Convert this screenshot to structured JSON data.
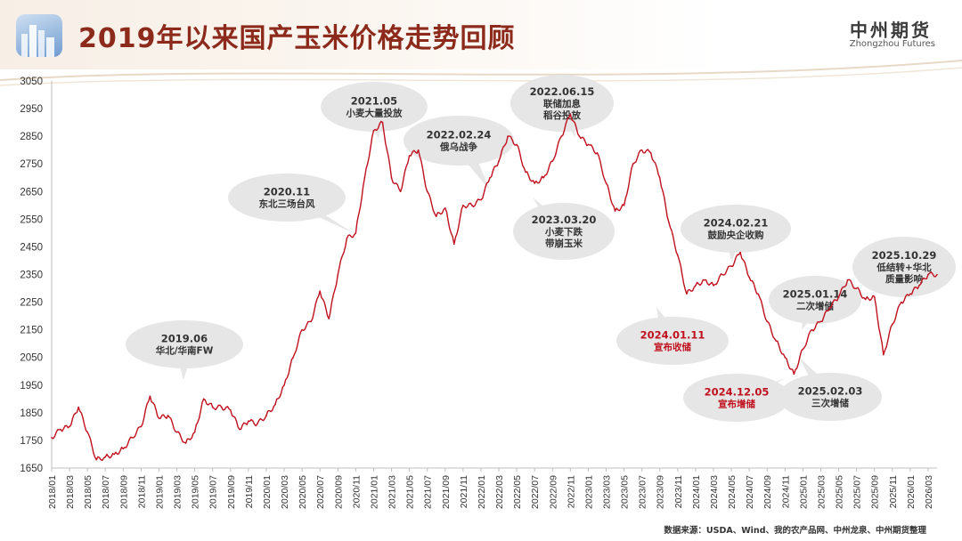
{
  "header": {
    "title": "2019年以来国产玉米价格走势回顾",
    "brand_cn": "中州期货",
    "brand_en": "Zhongzhou Futures"
  },
  "source_note": "数据来源：USDA、Wind、我的农产品网、中州龙泉、中州期货整理",
  "colors": {
    "line": "#c0101e",
    "bubble": "#e6e6e6",
    "highlight_text": "#c0101e",
    "title": "#8c2a1c"
  },
  "chart_data": {
    "type": "line",
    "title": "",
    "xlabel": "",
    "ylabel": "",
    "ylim": [
      1650,
      3050
    ],
    "yticks": [
      1650,
      1750,
      1850,
      1950,
      2050,
      2150,
      2250,
      2350,
      2450,
      2550,
      2650,
      2750,
      2850,
      2950,
      3050
    ],
    "xlim": [
      "2018-01",
      "2026-04"
    ],
    "xticks": [
      "2018/01",
      "2018/03",
      "2018/05",
      "2018/07",
      "2018/09",
      "2018/11",
      "2019/01",
      "2019/03",
      "2019/05",
      "2019/07",
      "2019/09",
      "2019/11",
      "2020/01",
      "2020/03",
      "2020/05",
      "2020/07",
      "2020/09",
      "2020/11",
      "2021/01",
      "2021/03",
      "2021/05",
      "2021/07",
      "2021/09",
      "2021/11",
      "2022/01",
      "2022/03",
      "2022/05",
      "2022/07",
      "2022/09",
      "2022/11",
      "2023/01",
      "2023/03",
      "2023/05",
      "2023/07",
      "2023/09",
      "2023/11",
      "2024/01",
      "2024/03",
      "2024/05",
      "2024/07",
      "2024/09",
      "2024/11",
      "2025/01",
      "2025/03",
      "2025/05",
      "2025/07",
      "2025/09",
      "2025/11",
      "2026/01",
      "2026/03"
    ],
    "grid": false,
    "series": [
      {
        "x": [
          "2018-01",
          "2018-02",
          "2018-03",
          "2018-04",
          "2018-05",
          "2018-06",
          "2018-07",
          "2018-08",
          "2018-09",
          "2018-10",
          "2018-11",
          "2018-12",
          "2019-01",
          "2019-02",
          "2019-03",
          "2019-04",
          "2019-05",
          "2019-06",
          "2019-07",
          "2019-08",
          "2019-09",
          "2019-10",
          "2019-11",
          "2019-12",
          "2020-01",
          "2020-02",
          "2020-03",
          "2020-04",
          "2020-05",
          "2020-06",
          "2020-07",
          "2020-08",
          "2020-09",
          "2020-10",
          "2020-11",
          "2020-12",
          "2021-01",
          "2021-02",
          "2021-03",
          "2021-04",
          "2021-05",
          "2021-06",
          "2021-07",
          "2021-08",
          "2021-09",
          "2021-10",
          "2021-11",
          "2021-12",
          "2022-01",
          "2022-02",
          "2022-03",
          "2022-04",
          "2022-05",
          "2022-06",
          "2022-07",
          "2022-08",
          "2022-09",
          "2022-10",
          "2022-11",
          "2022-12",
          "2023-01",
          "2023-02",
          "2023-03",
          "2023-04",
          "2023-05",
          "2023-06",
          "2023-07",
          "2023-08",
          "2023-09",
          "2023-10",
          "2023-11",
          "2023-12",
          "2024-01",
          "2024-02",
          "2024-03",
          "2024-04",
          "2024-05",
          "2024-06",
          "2024-07",
          "2024-08",
          "2024-09",
          "2024-10",
          "2024-11",
          "2024-12",
          "2025-01",
          "2025-02",
          "2025-03",
          "2025-04",
          "2025-05",
          "2025-06",
          "2025-07",
          "2025-08",
          "2025-09",
          "2025-10",
          "2025-11",
          "2025-12",
          "2026-01",
          "2026-02",
          "2026-03",
          "2026-04"
        ],
        "values": [
          1760,
          1790,
          1800,
          1870,
          1780,
          1680,
          1690,
          1700,
          1720,
          1760,
          1800,
          1910,
          1830,
          1840,
          1780,
          1740,
          1780,
          1900,
          1870,
          1870,
          1860,
          1790,
          1820,
          1810,
          1840,
          1880,
          1950,
          2050,
          2150,
          2180,
          2290,
          2190,
          2350,
          2480,
          2500,
          2700,
          2870,
          2900,
          2700,
          2650,
          2780,
          2800,
          2650,
          2560,
          2590,
          2460,
          2600,
          2600,
          2620,
          2700,
          2760,
          2850,
          2820,
          2720,
          2680,
          2700,
          2760,
          2850,
          2930,
          2850,
          2820,
          2790,
          2680,
          2580,
          2600,
          2750,
          2800,
          2790,
          2700,
          2540,
          2420,
          2280,
          2310,
          2330,
          2310,
          2350,
          2380,
          2430,
          2340,
          2280,
          2180,
          2110,
          2050,
          1990,
          2080,
          2150,
          2180,
          2230,
          2270,
          2330,
          2300,
          2260,
          2270,
          2060,
          2170,
          2250,
          2280,
          2310,
          2350,
          2350
        ]
      }
    ],
    "annotations": [
      {
        "label": "2019.06\n华北/华南FW",
        "date": "2019-06",
        "value": 1870,
        "highlight": false
      },
      {
        "label": "2020.11\n东北三场台风",
        "date": "2020-11",
        "value": 2480,
        "highlight": false
      },
      {
        "label": "2021.05\n小麦大量投放",
        "date": "2021-05",
        "value": 2900,
        "highlight": false
      },
      {
        "label": "2022.02.24\n俄乌战争",
        "date": "2022-02",
        "value": 2590,
        "highlight": false
      },
      {
        "label": "2022.06.15\n联储加息\n稻谷投放",
        "date": "2022-06",
        "value": 2850,
        "highlight": false
      },
      {
        "label": "2023.03.20\n小麦下跌\n带崩玉米",
        "date": "2023-03",
        "value": 2680,
        "highlight": false
      },
      {
        "label": "2024.01.11\n宣布收储",
        "date": "2024-01",
        "value": 2300,
        "highlight": true
      },
      {
        "label": "2024.02.21\n鼓励央企收购",
        "date": "2024-02",
        "value": 2320,
        "highlight": false
      },
      {
        "label": "2024.12.05\n宣布增储",
        "date": "2024-12",
        "value": 1990,
        "highlight": true
      },
      {
        "label": "2025.01.14\n二次增储",
        "date": "2025-01",
        "value": 2080,
        "highlight": false
      },
      {
        "label": "2025.02.03\n三次增储",
        "date": "2025-02",
        "value": 2130,
        "highlight": false
      },
      {
        "label": "2025.10.29\n低结转+华北\n质量影响",
        "date": "2025-10",
        "value": 2170,
        "highlight": false
      }
    ]
  }
}
